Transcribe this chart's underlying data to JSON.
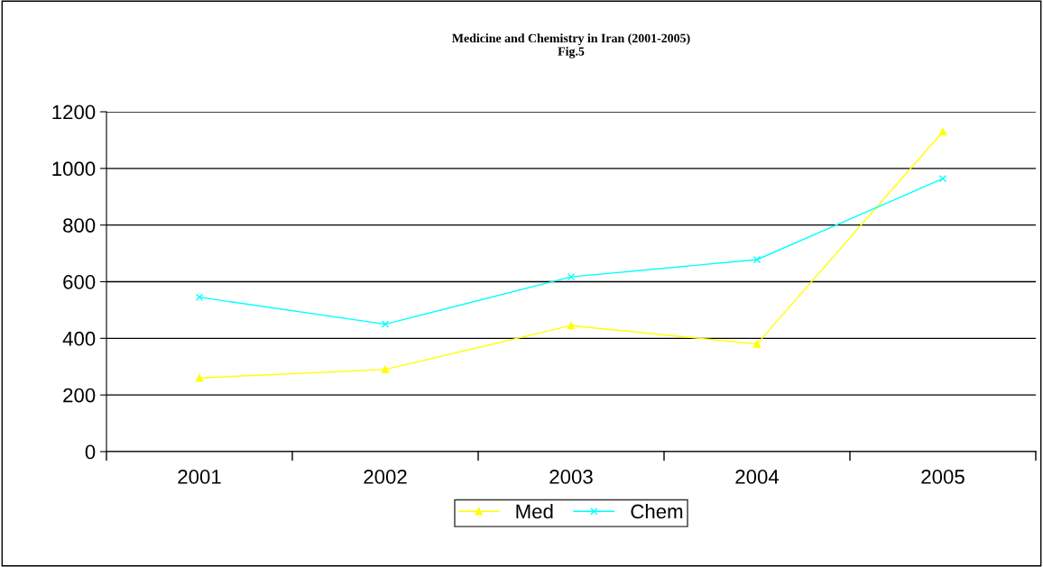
{
  "chart_data": {
    "type": "line",
    "title": "Medicine and Chemistry in Iran (2001-2005)\nFig.5",
    "categories": [
      "2001",
      "2002",
      "2003",
      "2004",
      "2005"
    ],
    "series": [
      {
        "name": "Med",
        "color": "#ffff00",
        "marker": "triangle",
        "values": [
          260,
          290,
          445,
          380,
          1130
        ]
      },
      {
        "name": "Chem",
        "color": "#00ffff",
        "marker": "cross",
        "values": [
          545,
          450,
          617,
          678,
          964
        ]
      }
    ],
    "ylim": [
      0,
      1200
    ],
    "yticks": [
      0,
      200,
      400,
      600,
      800,
      1000,
      1200
    ],
    "grid": "y",
    "legend": "bottom",
    "line_style": "solid"
  }
}
